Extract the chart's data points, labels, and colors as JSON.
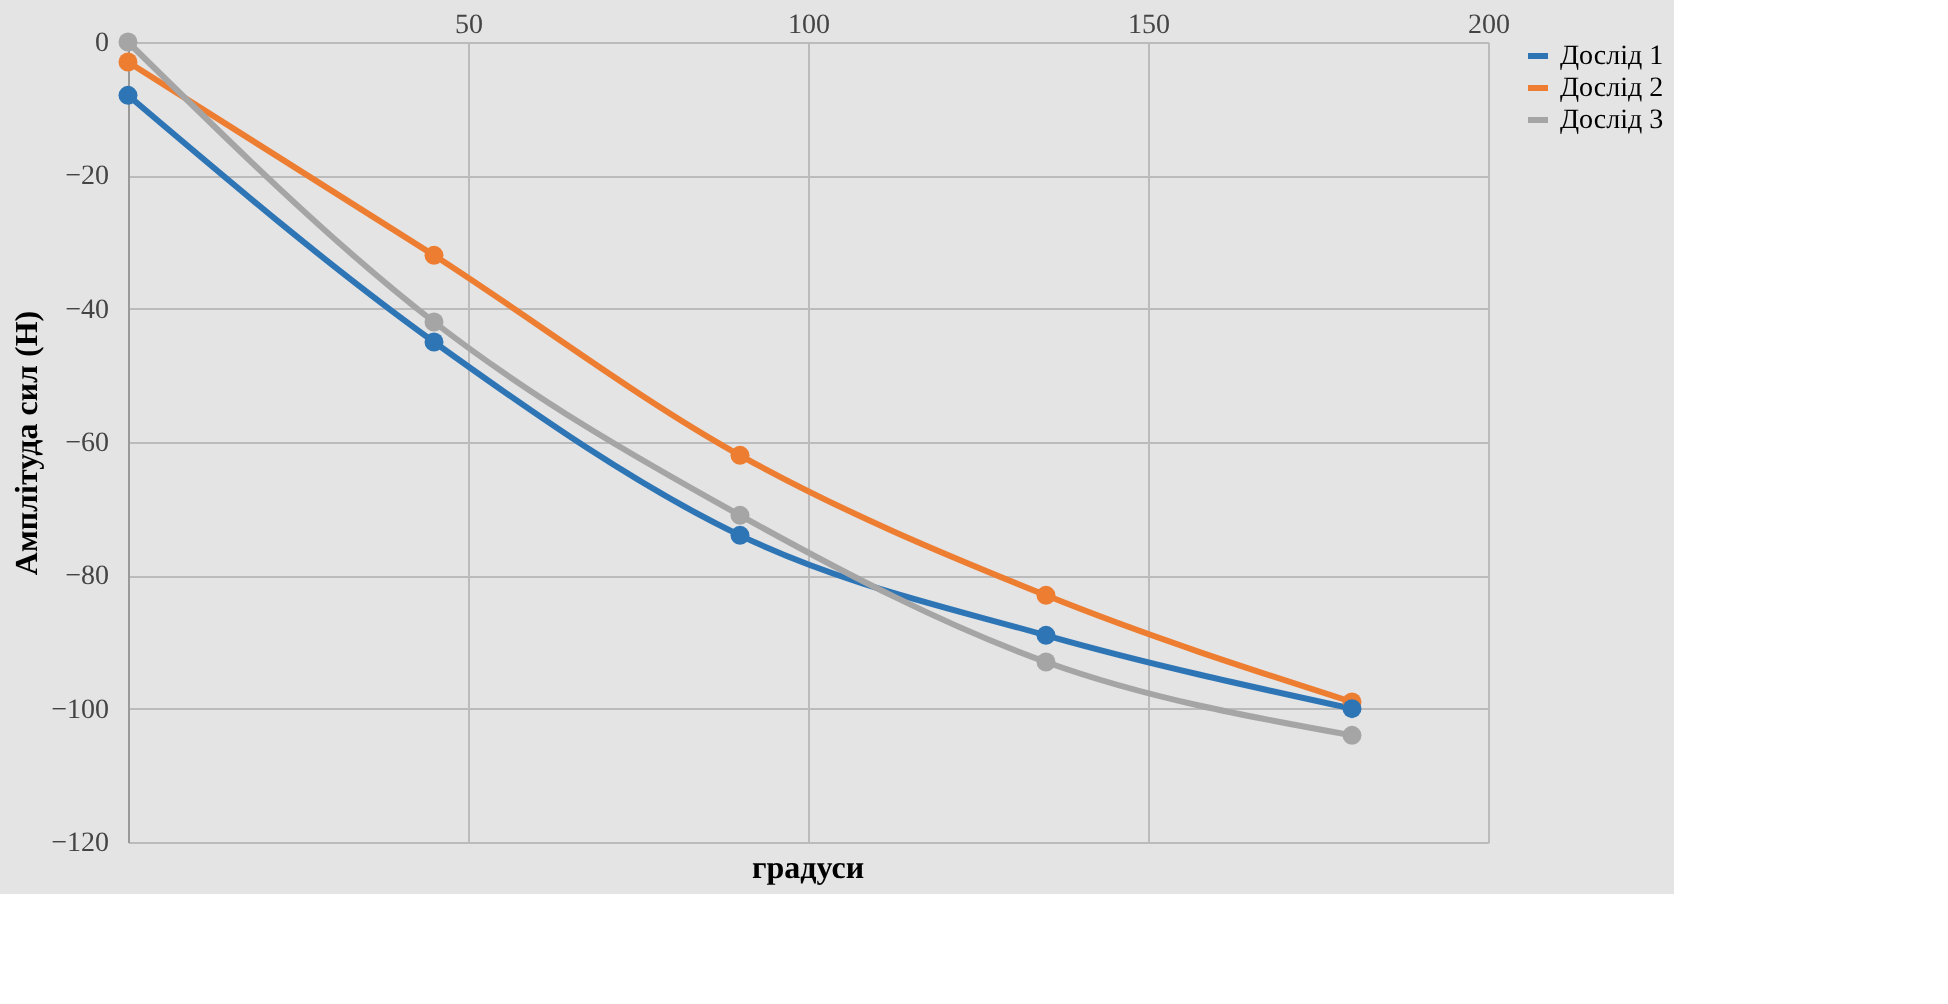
{
  "chart_data": {
    "type": "line",
    "xlabel": "градуси",
    "ylabel": "Амплітуда сил (Н)",
    "x": [
      0,
      45,
      90,
      135,
      180
    ],
    "series": [
      {
        "name": "Дослід 1",
        "color": "#2e75b6",
        "values": [
          -8,
          -45,
          -74,
          -89,
          -100
        ]
      },
      {
        "name": "Дослід 2",
        "color": "#ed7d31",
        "values": [
          -3,
          -32,
          -62,
          -83,
          -99
        ]
      },
      {
        "name": "Дослід 3",
        "color": "#a5a5a5",
        "values": [
          0,
          -42,
          -71,
          -93,
          -104
        ]
      }
    ],
    "xlim": [
      0,
      200
    ],
    "xticks": [
      50,
      100,
      150,
      200
    ],
    "ylim": [
      -120,
      0
    ],
    "yticks": [
      -120,
      -100,
      -80,
      -60,
      -40,
      -20,
      0
    ],
    "grid": true,
    "legend": "right",
    "marker": "circle",
    "line_style": "solid"
  }
}
